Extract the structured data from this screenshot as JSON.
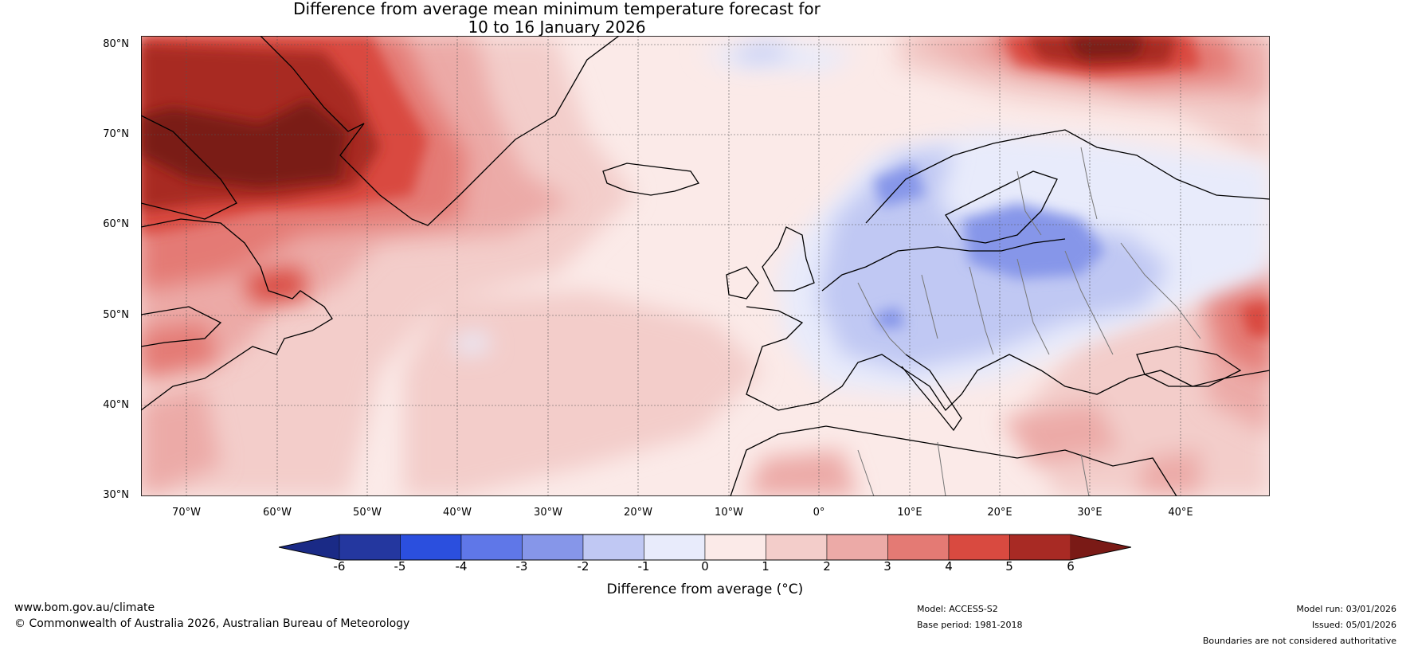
{
  "title": {
    "line1": "Difference from average mean minimum temperature forecast for",
    "line2": "10 to 16 January 2026"
  },
  "map": {
    "lat_labels": [
      "80°N",
      "70°N",
      "60°N",
      "50°N",
      "40°N",
      "30°N"
    ],
    "lon_labels": [
      "70°W",
      "60°W",
      "50°W",
      "40°W",
      "30°W",
      "20°W",
      "10°W",
      "0°",
      "10°E",
      "20°E",
      "30°E",
      "40°E"
    ],
    "lat_values": [
      80,
      70,
      60,
      50,
      40,
      30
    ],
    "lon_values": [
      -70,
      -60,
      -50,
      -40,
      -30,
      -20,
      -10,
      0,
      10,
      20,
      30,
      40
    ],
    "extent": {
      "lon_min": -75,
      "lon_max": 50,
      "lat_min": 30,
      "lat_max": 81
    }
  },
  "colorbar": {
    "ticks": [
      "-6",
      "-5",
      "-4",
      "-3",
      "-2",
      "-1",
      "0",
      "1",
      "2",
      "3",
      "4",
      "5",
      "6"
    ],
    "colors": [
      "#24379f",
      "#2b4fde",
      "#5f77e8",
      "#8696e9",
      "#c0c8f3",
      "#e8ebfb",
      "#fbeae8",
      "#f3cdca",
      "#ecaaa7",
      "#e47a74",
      "#d94a40",
      "#a82a24"
    ],
    "low_extend_color": "#1a2a86",
    "high_extend_color": "#7a1a16",
    "label": "Difference from average (°C)"
  },
  "footer": {
    "website": "www.bom.gov.au/climate",
    "copyright": "© Commonwealth of Australia 2026, Australian Bureau of Meteorology",
    "model": "Model: ACCESS-S2",
    "base_period": "Base period: 1981-2018",
    "model_run": "Model run: 03/01/2026",
    "issued": "Issued: 05/01/2026",
    "disclaimer": "Boundaries are not considered authoritative"
  }
}
